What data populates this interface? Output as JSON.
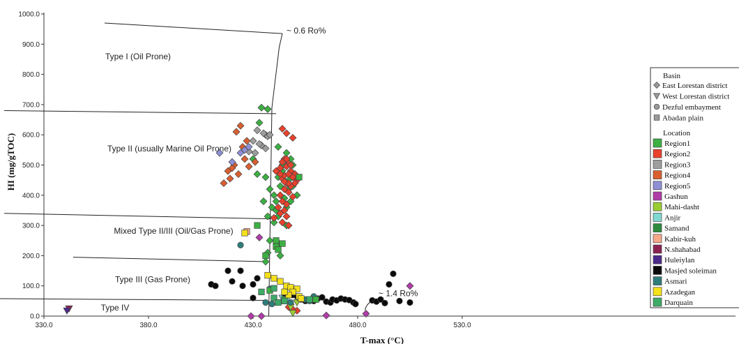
{
  "chart_data": {
    "type": "scatter",
    "xlabel": "T-max (°C)",
    "ylabel": "HI (mg/gTOC)",
    "xlim": [
      330,
      550
    ],
    "ylim": [
      0,
      1000
    ],
    "x_ticks": [
      "330.0",
      "380.0",
      "430.0",
      "480.0",
      "530.0"
    ],
    "y_ticks": [
      "0.0",
      "100.0",
      "200.0",
      "300.0",
      "400.0",
      "500.0",
      "600.0",
      "700.0",
      "800.0",
      "900.0",
      "1000.0"
    ],
    "grid": false,
    "legend_placement": "right",
    "region_labels": [
      {
        "text": "Type I (Oil Prone)",
        "x": 375,
        "y": 850
      },
      {
        "text": "Type II (usually Marine Oil Prone)",
        "x": 390,
        "y": 545
      },
      {
        "text": "Mixed Type II/III (Oil/Gas Prone)",
        "x": 392,
        "y": 272
      },
      {
        "text": "Type III (Gas Prone)",
        "x": 382,
        "y": 112
      },
      {
        "text": "Type IV",
        "x": 364,
        "y": 18
      }
    ],
    "boundaries": [
      {
        "name": "ro06",
        "points": [
          [
            437.5,
            0
          ],
          [
            439,
            690
          ],
          [
            442.5,
            890
          ],
          [
            444,
            935
          ]
        ]
      },
      {
        "name": "type1-top",
        "points": [
          [
            359,
            970
          ],
          [
            444,
            935
          ]
        ]
      },
      {
        "name": "type2-top",
        "points": [
          [
            311,
            680
          ],
          [
            441,
            670
          ]
        ]
      },
      {
        "name": "type2-bottom",
        "points": [
          [
            311,
            340
          ],
          [
            438.5,
            322
          ]
        ]
      },
      {
        "name": "type3-top",
        "points": [
          [
            344,
            195
          ],
          [
            437.5,
            180
          ]
        ]
      },
      {
        "name": "type4-top",
        "points": [
          [
            300,
            58
          ],
          [
            437,
            52
          ]
        ]
      }
    ],
    "annotations": [
      {
        "text": "~ 0.6 Ro%",
        "x": 446,
        "y": 935
      },
      {
        "text": "~ 1.4 Ro%",
        "x": 490,
        "y": 66
      }
    ],
    "legend": {
      "basin_title": "Basin",
      "basins": [
        {
          "name": "East Lorestan district",
          "shape": "diamond",
          "color": "#9a9a9a"
        },
        {
          "name": "West Lorestan district",
          "shape": "triangle",
          "color": "#9a9a9a"
        },
        {
          "name": "Dezful embayment",
          "shape": "circle",
          "color": "#9a9a9a"
        },
        {
          "name": "Abadan plain",
          "shape": "square",
          "color": "#9a9a9a"
        }
      ],
      "location_title": "Location",
      "locations": [
        {
          "name": "Region1",
          "color": "#3cb043"
        },
        {
          "name": "Region2",
          "color": "#e8412c"
        },
        {
          "name": "Region3",
          "color": "#9e9e9e"
        },
        {
          "name": "Region4",
          "color": "#d95f30"
        },
        {
          "name": "Region5",
          "color": "#8f8fd6"
        },
        {
          "name": "Gashun",
          "color": "#b03ca8"
        },
        {
          "name": "Mahi-dasht",
          "color": "#9acd32"
        },
        {
          "name": "Anjir",
          "color": "#80d8d0"
        },
        {
          "name": "Samand",
          "color": "#2e8b3e"
        },
        {
          "name": "Kabir-kuh",
          "color": "#f7a98a"
        },
        {
          "name": "N.shahabad",
          "color": "#8b2252"
        },
        {
          "name": "Huleiylan",
          "color": "#4b2a8a"
        },
        {
          "name": "Masjed soleiman",
          "color": "#0a0a0a"
        },
        {
          "name": "Asmari",
          "color": "#2e7d7a"
        },
        {
          "name": "Azadegan",
          "color": "#f5e11a"
        },
        {
          "name": "Darquain",
          "color": "#3daa68"
        }
      ]
    },
    "series": [
      {
        "name": "Region1",
        "shape": "diamond",
        "color": "#3cb043",
        "points": [
          [
            434,
            690
          ],
          [
            437,
            685
          ],
          [
            433,
            640
          ],
          [
            436,
            600
          ],
          [
            430,
            520
          ],
          [
            432,
            470
          ],
          [
            436,
            460
          ],
          [
            438,
            420
          ],
          [
            435,
            380
          ],
          [
            439,
            360
          ],
          [
            437,
            330
          ],
          [
            440,
            310
          ],
          [
            438,
            250
          ],
          [
            437,
            210
          ],
          [
            436,
            180
          ],
          [
            443,
            200
          ],
          [
            442,
            330
          ],
          [
            441,
            350
          ],
          [
            446,
            300
          ],
          [
            444,
            500
          ],
          [
            446,
            540
          ],
          [
            442,
            560
          ],
          [
            448,
            520
          ],
          [
            444,
            480
          ],
          [
            450,
            460
          ],
          [
            443,
            430
          ],
          [
            447,
            420
          ],
          [
            445,
            390
          ],
          [
            448,
            380
          ],
          [
            446,
            360
          ],
          [
            449,
            430
          ],
          [
            451,
            400
          ],
          [
            450,
            470
          ],
          [
            447,
            450
          ],
          [
            449,
            500
          ],
          [
            442,
            460
          ],
          [
            440,
            400
          ],
          [
            441,
            380
          ]
        ]
      },
      {
        "name": "Region2",
        "shape": "diamond",
        "color": "#e8412c",
        "points": [
          [
            444,
            620
          ],
          [
            446,
            605
          ],
          [
            449,
            590
          ],
          [
            445,
            520
          ],
          [
            447,
            505
          ],
          [
            443,
            490
          ],
          [
            448,
            480
          ],
          [
            450,
            470
          ],
          [
            444,
            455
          ],
          [
            446,
            440
          ],
          [
            448,
            430
          ],
          [
            445,
            420
          ],
          [
            447,
            410
          ],
          [
            443,
            400
          ],
          [
            449,
            395
          ],
          [
            444,
            380
          ],
          [
            446,
            370
          ],
          [
            442,
            360
          ],
          [
            445,
            350
          ],
          [
            443,
            340
          ],
          [
            446,
            330
          ],
          [
            440,
            325
          ],
          [
            444,
            310
          ],
          [
            447,
            300
          ],
          [
            449,
            460
          ],
          [
            451,
            450
          ],
          [
            445,
            465
          ],
          [
            447,
            470
          ],
          [
            443,
            470
          ],
          [
            441,
            480
          ],
          [
            446,
            495
          ],
          [
            448,
            500
          ],
          [
            444,
            510
          ],
          [
            446,
            520
          ],
          [
            450,
            440
          ],
          [
            447,
            440
          ],
          [
            445,
            445
          ],
          [
            447,
            30
          ],
          [
            449,
            22
          ],
          [
            451,
            18
          ]
        ]
      },
      {
        "name": "Region3",
        "shape": "diamond",
        "color": "#9e9e9e",
        "points": [
          [
            432,
            615
          ],
          [
            435,
            605
          ],
          [
            437,
            595
          ],
          [
            430,
            580
          ],
          [
            434,
            565
          ],
          [
            436,
            555
          ],
          [
            431,
            540
          ],
          [
            433,
            570
          ],
          [
            438,
            600
          ],
          [
            428,
            545
          ]
        ]
      },
      {
        "name": "Region4",
        "shape": "diamond",
        "color": "#d95f30",
        "points": [
          [
            424,
            630
          ],
          [
            422,
            610
          ],
          [
            427,
            580
          ],
          [
            425,
            560
          ],
          [
            421,
            500
          ],
          [
            420,
            490
          ],
          [
            418,
            480
          ],
          [
            423,
            470
          ],
          [
            419,
            455
          ],
          [
            416,
            440
          ],
          [
            428,
            495
          ],
          [
            431,
            510
          ],
          [
            426,
            520
          ]
        ]
      },
      {
        "name": "Region5",
        "shape": "diamond",
        "color": "#8f8fd6",
        "points": [
          [
            414,
            540
          ],
          [
            424,
            540
          ],
          [
            420,
            510
          ],
          [
            426,
            550
          ],
          [
            428,
            560
          ]
        ]
      },
      {
        "name": "Gashun",
        "shape": "diamond",
        "color": "#b03ca8",
        "points": [
          [
            429,
            0
          ],
          [
            434,
            0
          ],
          [
            465,
            2
          ],
          [
            484,
            8
          ],
          [
            505,
            100
          ],
          [
            433,
            260
          ]
        ]
      },
      {
        "name": "Mahi-dasht",
        "shape": "triangle",
        "color": "#9acd32",
        "points": [
          [
            449,
            10
          ],
          [
            448,
            30
          ],
          [
            451,
            45
          ]
        ]
      },
      {
        "name": "Anjir",
        "shape": "triangle",
        "color": "#80d8d0",
        "points": [
          [
            446,
            52
          ],
          [
            444,
            60
          ]
        ]
      },
      {
        "name": "N.shahabad",
        "shape": "triangle",
        "color": "#8b2252",
        "points": [
          [
            342,
            25
          ]
        ]
      },
      {
        "name": "Huleiylan",
        "shape": "triangle",
        "color": "#4b2a8a",
        "points": [
          [
            341,
            18
          ]
        ]
      },
      {
        "name": "Masjed soleiman",
        "shape": "circle",
        "color": "#0a0a0a",
        "points": [
          [
            410,
            105
          ],
          [
            412,
            100
          ],
          [
            418,
            150
          ],
          [
            420,
            115
          ],
          [
            425,
            100
          ],
          [
            424,
            150
          ],
          [
            432,
            125
          ],
          [
            430,
            105
          ],
          [
            430,
            60
          ],
          [
            445,
            75
          ],
          [
            449,
            70
          ],
          [
            451,
            65
          ],
          [
            453,
            55
          ],
          [
            455,
            50
          ],
          [
            459,
            50
          ],
          [
            461,
            58
          ],
          [
            463,
            62
          ],
          [
            465,
            48
          ],
          [
            467,
            45
          ],
          [
            468,
            55
          ],
          [
            470,
            52
          ],
          [
            472,
            58
          ],
          [
            474,
            55
          ],
          [
            476,
            53
          ],
          [
            478,
            45
          ],
          [
            479,
            40
          ],
          [
            487,
            52
          ],
          [
            489,
            48
          ],
          [
            491,
            55
          ],
          [
            493,
            43
          ],
          [
            495,
            105
          ],
          [
            497,
            140
          ],
          [
            500,
            50
          ],
          [
            505,
            45
          ]
        ]
      },
      {
        "name": "Asmari",
        "shape": "circle",
        "color": "#2e7d7a",
        "points": [
          [
            424,
            235
          ],
          [
            438,
            90
          ],
          [
            436,
            45
          ],
          [
            439,
            40
          ],
          [
            448,
            45
          ],
          [
            452,
            60
          ],
          [
            455,
            55
          ],
          [
            457,
            50
          ],
          [
            459,
            65
          ]
        ]
      },
      {
        "name": "Abadan-Region1",
        "shape": "square",
        "color": "#3cb043",
        "points": [
          [
            432,
            300
          ],
          [
            441,
            230
          ],
          [
            441,
            250
          ],
          [
            442,
            220
          ],
          [
            436,
            200
          ],
          [
            444,
            240
          ],
          [
            452,
            460
          ],
          [
            438,
            85
          ],
          [
            445,
            55
          ],
          [
            460,
            55
          ]
        ]
      },
      {
        "name": "Kabir-kuh",
        "shape": "square",
        "color": "#f7a98a",
        "points": [
          [
            427,
            280
          ]
        ]
      },
      {
        "name": "Azadegan",
        "shape": "square",
        "color": "#f5e11a",
        "points": [
          [
            426,
            275
          ],
          [
            437,
            135
          ],
          [
            440,
            125
          ],
          [
            443,
            115
          ],
          [
            446,
            100
          ],
          [
            448,
            95
          ],
          [
            451,
            90
          ],
          [
            449,
            80
          ],
          [
            447,
            70
          ],
          [
            452,
            65
          ],
          [
            453,
            58
          ],
          [
            445,
            80
          ]
        ]
      },
      {
        "name": "Darquain",
        "shape": "square",
        "color": "#3daa68",
        "points": [
          [
            434,
            80
          ],
          [
            440,
            60
          ],
          [
            442,
            45
          ],
          [
            445,
            50
          ],
          [
            440,
            92
          ],
          [
            457,
            55
          ]
        ]
      }
    ]
  }
}
